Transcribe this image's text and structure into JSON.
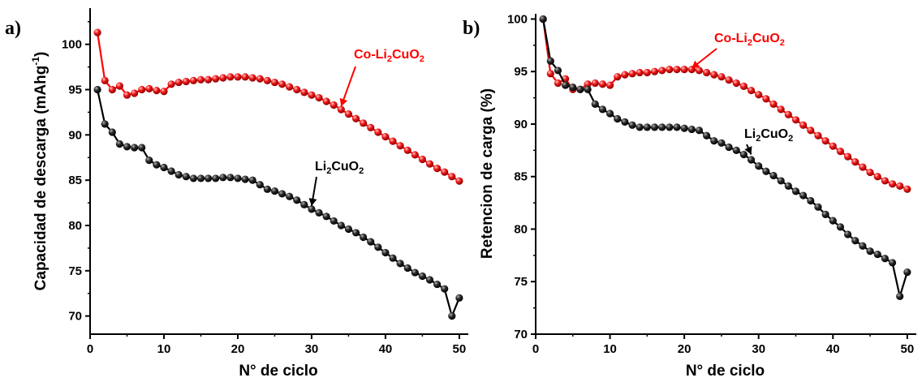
{
  "chart_data": [
    {
      "panel_label": "a)",
      "type": "line",
      "xlabel": "N° de ciclo",
      "ylabel": "Capacidad de descarga (mAhg-1)",
      "ylabel_main": "Capacidad de descarga (mAhg",
      "ylabel_sup": "-1",
      "ylabel_end": ")",
      "xlim": [
        0,
        51
      ],
      "ylim": [
        68,
        104
      ],
      "xticks": [
        0,
        10,
        20,
        30,
        40,
        50
      ],
      "yticks": [
        70,
        75,
        80,
        85,
        90,
        95,
        100
      ],
      "grid": false,
      "annotations": [
        {
          "series": "Co-Li2CuO2",
          "text": "Co-Li2CuO2",
          "color": "#ff0000",
          "at": [
            34,
            92.8
          ]
        },
        {
          "series": "Li2CuO2",
          "text": "Li2CuO2",
          "color": "#000000",
          "at": [
            30,
            81.8
          ]
        }
      ],
      "series": [
        {
          "name": "Co-Li2CuO2",
          "color": "#ff0000",
          "x": [
            1,
            2,
            3,
            4,
            5,
            6,
            7,
            8,
            9,
            10,
            11,
            12,
            13,
            14,
            15,
            16,
            17,
            18,
            19,
            20,
            21,
            22,
            23,
            24,
            25,
            26,
            27,
            28,
            29,
            30,
            31,
            32,
            33,
            34,
            35,
            36,
            37,
            38,
            39,
            40,
            41,
            42,
            43,
            44,
            45,
            46,
            47,
            48,
            49,
            50
          ],
          "values": [
            101.3,
            96.0,
            95.0,
            95.4,
            94.4,
            94.6,
            95.0,
            95.1,
            94.9,
            94.8,
            95.6,
            95.8,
            95.9,
            96.0,
            96.1,
            96.1,
            96.2,
            96.3,
            96.4,
            96.4,
            96.4,
            96.3,
            96.2,
            96.0,
            95.8,
            95.6,
            95.3,
            95.0,
            94.7,
            94.4,
            94.1,
            93.7,
            93.3,
            92.8,
            92.3,
            91.8,
            91.3,
            90.8,
            90.3,
            89.8,
            89.3,
            88.8,
            88.3,
            87.8,
            87.3,
            86.8,
            86.3,
            85.9,
            85.4,
            84.9
          ]
        },
        {
          "name": "Li2CuO2",
          "color": "#000000",
          "x": [
            1,
            2,
            3,
            4,
            5,
            6,
            7,
            8,
            9,
            10,
            11,
            12,
            13,
            14,
            15,
            16,
            17,
            18,
            19,
            20,
            21,
            22,
            23,
            24,
            25,
            26,
            27,
            28,
            29,
            30,
            31,
            32,
            33,
            34,
            35,
            36,
            37,
            38,
            39,
            40,
            41,
            42,
            43,
            44,
            45,
            46,
            47,
            48,
            49,
            50
          ],
          "values": [
            95.0,
            91.2,
            90.3,
            89.0,
            88.7,
            88.6,
            88.6,
            87.2,
            86.7,
            86.4,
            86.0,
            85.6,
            85.4,
            85.2,
            85.2,
            85.2,
            85.2,
            85.3,
            85.3,
            85.2,
            85.1,
            85.0,
            84.5,
            84.0,
            83.8,
            83.5,
            83.2,
            82.8,
            82.3,
            81.8,
            81.4,
            81.0,
            80.5,
            80.0,
            79.6,
            79.2,
            78.7,
            78.2,
            77.6,
            77.0,
            76.4,
            75.8,
            75.3,
            74.8,
            74.4,
            74.0,
            73.5,
            73.0,
            70.0,
            72.0
          ]
        }
      ]
    },
    {
      "panel_label": "b)",
      "type": "line",
      "xlabel": "N° de ciclo",
      "ylabel": "Retencion de carga (%)",
      "xlim": [
        0,
        51
      ],
      "ylim": [
        70,
        100.5
      ],
      "xticks": [
        0,
        10,
        20,
        30,
        40,
        50
      ],
      "yticks": [
        70,
        75,
        80,
        85,
        90,
        95,
        100
      ],
      "grid": false,
      "annotations": [
        {
          "series": "Co-Li2CuO2",
          "text": "Co-Li2CuO2",
          "color": "#ff0000",
          "at": [
            21,
            95.0
          ]
        },
        {
          "series": "Li2CuO2",
          "text": "Li2CuO2",
          "color": "#000000",
          "at": [
            29,
            86.8
          ]
        }
      ],
      "series": [
        {
          "name": "Co-Li2CuO2",
          "color": "#ff0000",
          "x": [
            1,
            2,
            3,
            4,
            5,
            6,
            7,
            8,
            9,
            10,
            11,
            12,
            13,
            14,
            15,
            16,
            17,
            18,
            19,
            20,
            21,
            22,
            23,
            24,
            25,
            26,
            27,
            28,
            29,
            30,
            31,
            32,
            33,
            34,
            35,
            36,
            37,
            38,
            39,
            40,
            41,
            42,
            43,
            44,
            45,
            46,
            47,
            48,
            49,
            50
          ],
          "values": [
            100.0,
            94.8,
            93.9,
            94.3,
            93.3,
            93.3,
            93.8,
            93.9,
            93.8,
            93.7,
            94.5,
            94.7,
            94.8,
            94.9,
            94.9,
            95.0,
            95.1,
            95.2,
            95.2,
            95.2,
            95.2,
            95.1,
            94.9,
            94.7,
            94.5,
            94.2,
            93.9,
            93.6,
            93.2,
            92.8,
            92.4,
            91.9,
            91.4,
            90.9,
            90.4,
            89.9,
            89.4,
            88.9,
            88.4,
            87.9,
            87.4,
            86.9,
            86.4,
            85.9,
            85.4,
            85.0,
            84.6,
            84.3,
            84.1,
            83.8
          ]
        },
        {
          "name": "Li2CuO2",
          "color": "#000000",
          "x": [
            1,
            2,
            3,
            4,
            5,
            6,
            7,
            8,
            9,
            10,
            11,
            12,
            13,
            14,
            15,
            16,
            17,
            18,
            19,
            20,
            21,
            22,
            23,
            24,
            25,
            26,
            27,
            28,
            29,
            30,
            31,
            32,
            33,
            34,
            35,
            36,
            37,
            38,
            39,
            40,
            41,
            42,
            43,
            44,
            45,
            46,
            47,
            48,
            49,
            50
          ],
          "values": [
            100.0,
            96.0,
            95.1,
            93.7,
            93.5,
            93.3,
            93.3,
            91.9,
            91.4,
            91.0,
            90.5,
            90.2,
            89.9,
            89.7,
            89.7,
            89.7,
            89.7,
            89.7,
            89.7,
            89.6,
            89.5,
            89.4,
            88.9,
            88.4,
            88.2,
            87.8,
            87.5,
            87.1,
            86.6,
            86.0,
            85.5,
            85.1,
            84.6,
            84.1,
            83.6,
            83.2,
            82.7,
            82.1,
            81.4,
            80.8,
            80.2,
            79.5,
            78.9,
            78.4,
            77.9,
            77.6,
            77.2,
            76.8,
            73.6,
            75.9
          ]
        }
      ]
    }
  ]
}
